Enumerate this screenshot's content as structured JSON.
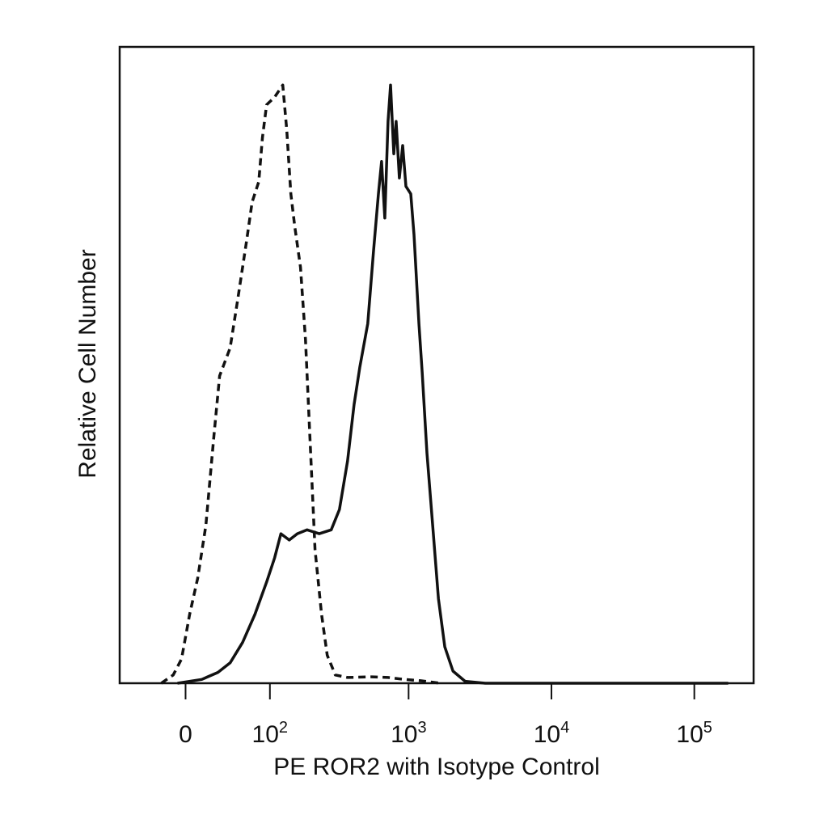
{
  "chart_data": {
    "type": "line",
    "x_label": "PE ROR2 with Isotype Control",
    "y_label": "Relative Cell Number",
    "xscale": "logicle",
    "xlim": [
      -70,
      260000
    ],
    "ylim": [
      0,
      100
    ],
    "xticks": [
      0,
      {
        "value": 100,
        "label": "10",
        "exponent": "2"
      },
      {
        "value": 1000,
        "label": "10",
        "exponent": "3"
      },
      {
        "value": 10000,
        "label": "10",
        "exponent": "4"
      },
      {
        "value": 100000,
        "label": "10",
        "exponent": "5"
      }
    ],
    "series": [
      {
        "color": "#111111",
        "dash": "dashed",
        "x": [
          -22,
          -11,
          -3.6,
          3.6,
          10.8,
          18.3,
          26,
          31.7,
          43,
          52,
          63,
          71,
          81,
          87,
          94,
          109,
          126,
          135,
          145,
          155,
          171,
          186,
          199,
          218,
          243,
          267,
          305,
          372,
          553,
          718,
          933,
          1212,
          1680
        ],
        "values": [
          0,
          1.3,
          3.8,
          10.8,
          16.5,
          24.8,
          38.8,
          48.3,
          52.7,
          60.4,
          69.3,
          75.6,
          78.8,
          85.8,
          90.9,
          92.1,
          94.0,
          87.0,
          76.9,
          71.8,
          65.4,
          54.0,
          40.0,
          21.0,
          10.8,
          4.4,
          1.3,
          0.9,
          1.0,
          0.9,
          0.6,
          0.4,
          0
        ]
      },
      {
        "color": "#111111",
        "dash": "solid",
        "x": [
          -7.2,
          14.5,
          30,
          43,
          58,
          75,
          94,
          109,
          122,
          141,
          162,
          191,
          234,
          285,
          326,
          372,
          414,
          454,
          517,
          568,
          614,
          646,
          681,
          718,
          747,
          787,
          818,
          862,
          909,
          958,
          1036,
          1091,
          1181,
          1244,
          1345,
          1474,
          1617,
          1793,
          2046,
          2486,
          3443,
          172700
        ],
        "values": [
          0,
          0.6,
          1.7,
          3.2,
          6.4,
          10.8,
          15.9,
          19.7,
          23.5,
          22.5,
          23.5,
          24.1,
          23.5,
          24.1,
          27.3,
          34.9,
          43.8,
          49.6,
          56.5,
          68.0,
          76.9,
          82.0,
          73.1,
          88.3,
          94.0,
          83.2,
          88.3,
          79.4,
          84.5,
          78.1,
          76.9,
          70.5,
          56.5,
          48.9,
          36.2,
          24.8,
          13.3,
          5.7,
          1.9,
          0.3,
          0,
          0
        ]
      }
    ]
  }
}
